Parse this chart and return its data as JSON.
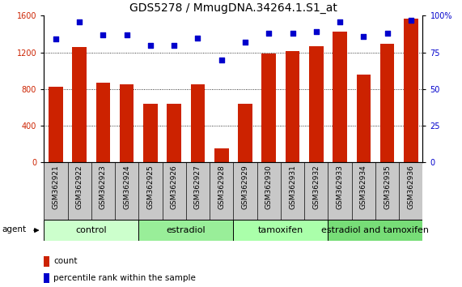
{
  "title": "GDS5278 / MmugDNA.34264.1.S1_at",
  "samples": [
    "GSM362921",
    "GSM362922",
    "GSM362923",
    "GSM362924",
    "GSM362925",
    "GSM362926",
    "GSM362927",
    "GSM362928",
    "GSM362929",
    "GSM362930",
    "GSM362931",
    "GSM362932",
    "GSM362933",
    "GSM362934",
    "GSM362935",
    "GSM362936"
  ],
  "counts": [
    820,
    1255,
    870,
    855,
    640,
    635,
    855,
    155,
    640,
    1185,
    1210,
    1265,
    1430,
    960,
    1295,
    1570
  ],
  "percentiles": [
    84,
    96,
    87,
    87,
    80,
    80,
    85,
    70,
    82,
    88,
    88,
    89,
    96,
    86,
    88,
    97
  ],
  "groups": [
    {
      "label": "control",
      "start": 0,
      "end": 4,
      "color": "#ccffcc"
    },
    {
      "label": "estradiol",
      "start": 4,
      "end": 8,
      "color": "#99ee99"
    },
    {
      "label": "tamoxifen",
      "start": 8,
      "end": 12,
      "color": "#aaffaa"
    },
    {
      "label": "estradiol and tamoxifen",
      "start": 12,
      "end": 16,
      "color": "#77dd77"
    }
  ],
  "bar_color": "#cc2200",
  "dot_color": "#0000cc",
  "ylim_left": [
    0,
    1600
  ],
  "ylim_right": [
    0,
    100
  ],
  "yticks_left": [
    0,
    400,
    800,
    1200,
    1600
  ],
  "yticks_right": [
    0,
    25,
    50,
    75,
    100
  ],
  "background_color": "#ffffff",
  "grid_color": "#000000",
  "title_fontsize": 10,
  "tick_fontsize": 7,
  "sample_fontsize": 6.5,
  "group_fontsize": 8,
  "legend_fontsize": 7.5
}
